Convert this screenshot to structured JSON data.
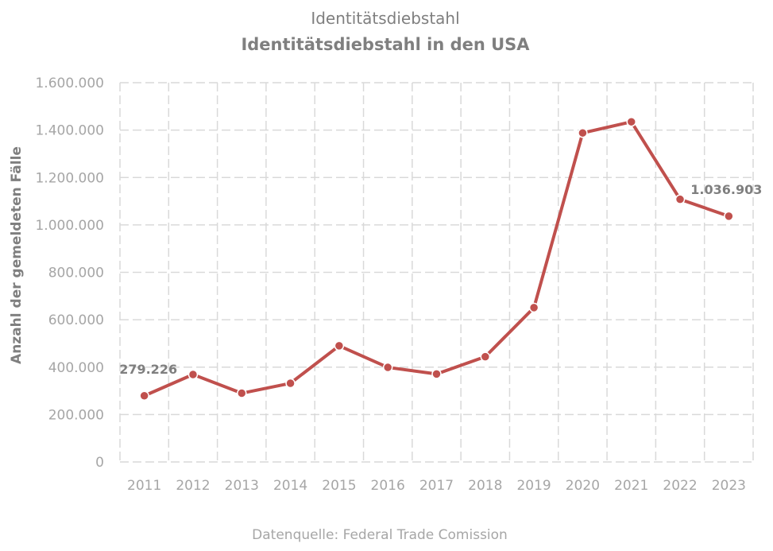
{
  "chart_data": {
    "type": "line",
    "subtitle": "Identitätsdiebstahl",
    "title": "Identitätsdiebstahl in den USA",
    "ylabel": "Anzahl der gemeldeten Fälle",
    "xlabel": "",
    "source": "Datenquelle: Federal Trade Comission",
    "ylim": [
      0,
      1600000
    ],
    "yticks": [
      0,
      200000,
      400000,
      600000,
      800000,
      1000000,
      1200000,
      1400000,
      1600000
    ],
    "ytick_labels": [
      "0",
      "200.000",
      "400.000",
      "600.000",
      "800.000",
      "1.000.000",
      "1.200.000",
      "1.400.000",
      "1.600.000"
    ],
    "categories": [
      "2011",
      "2012",
      "2013",
      "2014",
      "2015",
      "2016",
      "2017",
      "2018",
      "2019",
      "2020",
      "2021",
      "2022",
      "2023"
    ],
    "series": [
      {
        "values": [
          279226,
          369000,
          290000,
          332000,
          490000,
          399000,
          371000,
          444000,
          651000,
          1388000,
          1435000,
          1108000,
          1036903
        ]
      }
    ],
    "data_labels": [
      {
        "index": 0,
        "text": "279.226"
      },
      {
        "index": 12,
        "text": "1.036.903"
      }
    ],
    "colors": {
      "line": "#c0504d",
      "grid": "#d9d9d9",
      "text": "#7f7f7f",
      "tick": "#a6a6a6"
    },
    "grid": true,
    "legend": "none"
  }
}
